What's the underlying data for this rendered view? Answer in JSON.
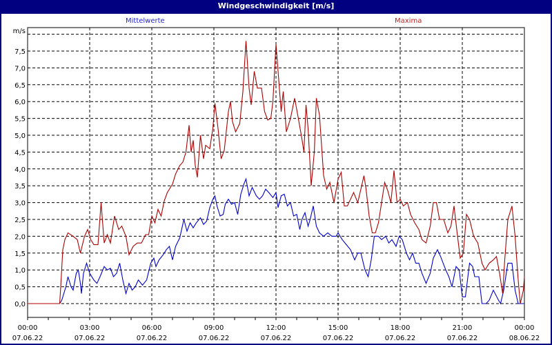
{
  "window": {
    "title": "Windgeschwindigkeit [m/s]"
  },
  "chart_data": {
    "type": "line",
    "title": "Windgeschwindigkeit [m/s]",
    "ylabel": "m/s",
    "xlabel": "",
    "ylim": [
      0,
      8.2
    ],
    "xlim_hours": [
      0,
      24
    ],
    "grid": true,
    "legend_position": "top",
    "y_ticks": [
      "0,0",
      "0,5",
      "1,0",
      "1,5",
      "2,0",
      "2,5",
      "3,0",
      "3,5",
      "4,0",
      "4,5",
      "5,0",
      "5,5",
      "6,0",
      "6,5",
      "7,0",
      "7,5"
    ],
    "x_ticks": [
      {
        "time": "00:00",
        "date": "07.06.22"
      },
      {
        "time": "03:00",
        "date": "07.06.22"
      },
      {
        "time": "06:00",
        "date": "07.06.22"
      },
      {
        "time": "09:00",
        "date": "07.06.22"
      },
      {
        "time": "12:00",
        "date": "07.06.22"
      },
      {
        "time": "15:00",
        "date": "07.06.22"
      },
      {
        "time": "18:00",
        "date": "07.06.22"
      },
      {
        "time": "21:00",
        "date": "07.06.22"
      },
      {
        "time": "00:00",
        "date": "08.06.22"
      }
    ],
    "series": [
      {
        "name": "Mittelwerte",
        "color": "#0000cc",
        "points_hour_value": [
          [
            0,
            0
          ],
          [
            1.55,
            0
          ],
          [
            1.65,
            0.1
          ],
          [
            1.85,
            0.5
          ],
          [
            1.95,
            0.8
          ],
          [
            2.1,
            0.5
          ],
          [
            2.2,
            0.4
          ],
          [
            2.35,
            0.9
          ],
          [
            2.45,
            1.0
          ],
          [
            2.55,
            0.6
          ],
          [
            2.6,
            0.3
          ],
          [
            2.7,
            0.9
          ],
          [
            2.85,
            1.2
          ],
          [
            3.0,
            0.9
          ],
          [
            3.2,
            0.7
          ],
          [
            3.35,
            0.6
          ],
          [
            3.5,
            0.8
          ],
          [
            3.7,
            1.1
          ],
          [
            3.85,
            1.0
          ],
          [
            4.0,
            1.05
          ],
          [
            4.15,
            0.8
          ],
          [
            4.3,
            0.9
          ],
          [
            4.45,
            1.2
          ],
          [
            4.6,
            0.7
          ],
          [
            4.75,
            0.3
          ],
          [
            4.9,
            0.6
          ],
          [
            5.05,
            0.4
          ],
          [
            5.2,
            0.5
          ],
          [
            5.35,
            0.7
          ],
          [
            5.55,
            0.55
          ],
          [
            5.75,
            0.7
          ],
          [
            5.95,
            1.2
          ],
          [
            6.1,
            1.35
          ],
          [
            6.2,
            1.1
          ],
          [
            6.35,
            1.3
          ],
          [
            6.55,
            1.45
          ],
          [
            6.7,
            1.6
          ],
          [
            6.85,
            1.7
          ],
          [
            7.0,
            1.3
          ],
          [
            7.15,
            1.7
          ],
          [
            7.35,
            1.95
          ],
          [
            7.55,
            2.5
          ],
          [
            7.7,
            2.15
          ],
          [
            7.85,
            2.4
          ],
          [
            8.0,
            2.25
          ],
          [
            8.15,
            2.4
          ],
          [
            8.35,
            2.55
          ],
          [
            8.5,
            2.35
          ],
          [
            8.65,
            2.45
          ],
          [
            8.8,
            2.85
          ],
          [
            8.95,
            3.1
          ],
          [
            9.05,
            3.2
          ],
          [
            9.15,
            2.9
          ],
          [
            9.3,
            2.6
          ],
          [
            9.45,
            2.65
          ],
          [
            9.55,
            2.95
          ],
          [
            9.7,
            3.1
          ],
          [
            9.85,
            2.95
          ],
          [
            10.0,
            3.0
          ],
          [
            10.15,
            2.65
          ],
          [
            10.3,
            3.25
          ],
          [
            10.45,
            3.55
          ],
          [
            10.55,
            3.7
          ],
          [
            10.7,
            3.2
          ],
          [
            10.85,
            3.45
          ],
          [
            11.05,
            3.2
          ],
          [
            11.2,
            3.1
          ],
          [
            11.35,
            3.2
          ],
          [
            11.5,
            3.4
          ],
          [
            11.65,
            3.3
          ],
          [
            11.85,
            3.15
          ],
          [
            12.0,
            3.3
          ],
          [
            12.1,
            2.85
          ],
          [
            12.25,
            3.2
          ],
          [
            12.4,
            3.25
          ],
          [
            12.55,
            2.9
          ],
          [
            12.7,
            3.0
          ],
          [
            12.85,
            2.6
          ],
          [
            13.0,
            2.65
          ],
          [
            13.15,
            2.2
          ],
          [
            13.25,
            2.5
          ],
          [
            13.4,
            2.7
          ],
          [
            13.55,
            2.3
          ],
          [
            13.65,
            2.5
          ],
          [
            13.8,
            2.9
          ],
          [
            13.95,
            2.3
          ],
          [
            14.1,
            2.1
          ],
          [
            14.3,
            2.0
          ],
          [
            14.5,
            2.1
          ],
          [
            14.7,
            2.0
          ],
          [
            14.9,
            2.0
          ],
          [
            15.0,
            2.1
          ],
          [
            15.2,
            1.9
          ],
          [
            15.4,
            1.75
          ],
          [
            15.6,
            1.6
          ],
          [
            15.8,
            1.3
          ],
          [
            15.95,
            1.5
          ],
          [
            16.1,
            1.5
          ],
          [
            16.3,
            1.0
          ],
          [
            16.45,
            0.8
          ],
          [
            16.6,
            1.3
          ],
          [
            16.75,
            2.0
          ],
          [
            16.95,
            2.0
          ],
          [
            17.1,
            1.9
          ],
          [
            17.3,
            2.0
          ],
          [
            17.45,
            1.8
          ],
          [
            17.6,
            1.9
          ],
          [
            17.8,
            1.7
          ],
          [
            17.95,
            2.0
          ],
          [
            18.1,
            1.9
          ],
          [
            18.3,
            1.5
          ],
          [
            18.45,
            1.3
          ],
          [
            18.6,
            1.5
          ],
          [
            18.75,
            1.2
          ],
          [
            18.9,
            1.2
          ],
          [
            19.05,
            0.9
          ],
          [
            19.25,
            0.6
          ],
          [
            19.45,
            0.9
          ],
          [
            19.6,
            1.35
          ],
          [
            19.8,
            1.6
          ],
          [
            19.95,
            1.4
          ],
          [
            20.2,
            1.0
          ],
          [
            20.35,
            0.8
          ],
          [
            20.5,
            0.5
          ],
          [
            20.7,
            1.1
          ],
          [
            20.85,
            1.0
          ],
          [
            21.0,
            0.2
          ],
          [
            21.15,
            0.2
          ],
          [
            21.35,
            1.2
          ],
          [
            21.5,
            1.1
          ],
          [
            21.6,
            0.8
          ],
          [
            21.8,
            0.8
          ],
          [
            21.95,
            0.0
          ],
          [
            22.15,
            0.0
          ],
          [
            22.3,
            0.1
          ],
          [
            22.5,
            0.4
          ],
          [
            22.75,
            0.1
          ],
          [
            22.85,
            0.0
          ],
          [
            23.0,
            0.4
          ],
          [
            23.2,
            1.2
          ],
          [
            23.4,
            1.2
          ],
          [
            23.55,
            0.4
          ],
          [
            23.7,
            0.0
          ],
          [
            24.0,
            0.0
          ]
        ]
      },
      {
        "name": "Maxima",
        "color": "#aa0000",
        "points_hour_value": [
          [
            0,
            0
          ],
          [
            1.55,
            0
          ],
          [
            1.6,
            0.5
          ],
          [
            1.7,
            1.6
          ],
          [
            1.8,
            1.9
          ],
          [
            1.95,
            2.1
          ],
          [
            2.2,
            2.0
          ],
          [
            2.4,
            1.9
          ],
          [
            2.55,
            1.5
          ],
          [
            2.75,
            2.0
          ],
          [
            2.9,
            2.2
          ],
          [
            3.05,
            1.9
          ],
          [
            3.2,
            1.75
          ],
          [
            3.4,
            1.75
          ],
          [
            3.55,
            3.0
          ],
          [
            3.7,
            1.8
          ],
          [
            3.85,
            2.05
          ],
          [
            4.0,
            1.8
          ],
          [
            4.2,
            2.6
          ],
          [
            4.4,
            2.2
          ],
          [
            4.55,
            2.3
          ],
          [
            4.75,
            2.0
          ],
          [
            4.9,
            1.45
          ],
          [
            5.1,
            1.7
          ],
          [
            5.3,
            1.8
          ],
          [
            5.5,
            1.8
          ],
          [
            5.7,
            2.05
          ],
          [
            5.85,
            2.05
          ],
          [
            6.0,
            2.6
          ],
          [
            6.15,
            2.4
          ],
          [
            6.3,
            2.8
          ],
          [
            6.45,
            2.6
          ],
          [
            6.6,
            3.05
          ],
          [
            6.75,
            3.3
          ],
          [
            6.9,
            3.45
          ],
          [
            7.0,
            3.55
          ],
          [
            7.15,
            3.85
          ],
          [
            7.35,
            4.1
          ],
          [
            7.5,
            4.2
          ],
          [
            7.65,
            4.5
          ],
          [
            7.8,
            5.3
          ],
          [
            7.9,
            4.5
          ],
          [
            8.0,
            4.85
          ],
          [
            8.1,
            4.1
          ],
          [
            8.2,
            3.75
          ],
          [
            8.35,
            5.0
          ],
          [
            8.5,
            4.3
          ],
          [
            8.6,
            4.7
          ],
          [
            8.8,
            4.6
          ],
          [
            8.95,
            5.2
          ],
          [
            9.05,
            5.95
          ],
          [
            9.2,
            5.2
          ],
          [
            9.35,
            4.3
          ],
          [
            9.5,
            4.55
          ],
          [
            9.7,
            5.7
          ],
          [
            9.8,
            6.0
          ],
          [
            9.9,
            5.4
          ],
          [
            10.05,
            5.1
          ],
          [
            10.25,
            5.35
          ],
          [
            10.4,
            6.3
          ],
          [
            10.55,
            7.8
          ],
          [
            10.7,
            6.4
          ],
          [
            10.8,
            5.9
          ],
          [
            10.95,
            6.9
          ],
          [
            11.1,
            6.4
          ],
          [
            11.3,
            6.4
          ],
          [
            11.45,
            5.7
          ],
          [
            11.6,
            5.45
          ],
          [
            11.75,
            5.5
          ],
          [
            11.85,
            6.0
          ],
          [
            12.0,
            7.7
          ],
          [
            12.1,
            6.9
          ],
          [
            12.25,
            5.7
          ],
          [
            12.35,
            6.3
          ],
          [
            12.5,
            5.1
          ],
          [
            12.7,
            5.5
          ],
          [
            12.9,
            6.1
          ],
          [
            13.05,
            5.6
          ],
          [
            13.25,
            4.9
          ],
          [
            13.35,
            4.5
          ],
          [
            13.45,
            5.9
          ],
          [
            13.55,
            5.2
          ],
          [
            13.7,
            3.5
          ],
          [
            13.85,
            4.5
          ],
          [
            13.95,
            6.1
          ],
          [
            14.1,
            5.6
          ],
          [
            14.3,
            3.8
          ],
          [
            14.45,
            3.4
          ],
          [
            14.6,
            3.6
          ],
          [
            14.8,
            3.0
          ],
          [
            15.0,
            3.7
          ],
          [
            15.15,
            3.9
          ],
          [
            15.3,
            2.9
          ],
          [
            15.45,
            2.9
          ],
          [
            15.6,
            3.1
          ],
          [
            15.75,
            3.3
          ],
          [
            15.95,
            3.0
          ],
          [
            16.1,
            3.4
          ],
          [
            16.25,
            3.8
          ],
          [
            16.35,
            3.4
          ],
          [
            16.5,
            2.6
          ],
          [
            16.65,
            2.1
          ],
          [
            16.8,
            2.1
          ],
          [
            16.95,
            2.4
          ],
          [
            17.1,
            3.0
          ],
          [
            17.25,
            3.6
          ],
          [
            17.4,
            3.35
          ],
          [
            17.55,
            3.0
          ],
          [
            17.7,
            3.95
          ],
          [
            17.85,
            3.0
          ],
          [
            18.0,
            3.1
          ],
          [
            18.15,
            2.9
          ],
          [
            18.35,
            3.0
          ],
          [
            18.5,
            2.65
          ],
          [
            18.7,
            2.4
          ],
          [
            18.9,
            2.2
          ],
          [
            19.05,
            1.9
          ],
          [
            19.25,
            1.8
          ],
          [
            19.45,
            2.3
          ],
          [
            19.6,
            3.0
          ],
          [
            19.75,
            3.0
          ],
          [
            19.9,
            2.5
          ],
          [
            20.1,
            2.5
          ],
          [
            20.3,
            2.1
          ],
          [
            20.45,
            2.3
          ],
          [
            20.6,
            2.9
          ],
          [
            20.75,
            2.1
          ],
          [
            20.9,
            1.35
          ],
          [
            21.05,
            1.5
          ],
          [
            21.2,
            2.65
          ],
          [
            21.35,
            2.5
          ],
          [
            21.55,
            2.0
          ],
          [
            21.75,
            1.8
          ],
          [
            21.95,
            1.2
          ],
          [
            22.1,
            1.0
          ],
          [
            22.3,
            1.2
          ],
          [
            22.5,
            1.3
          ],
          [
            22.65,
            1.4
          ],
          [
            22.8,
            0.9
          ],
          [
            22.95,
            0.3
          ],
          [
            23.05,
            1.3
          ],
          [
            23.2,
            2.5
          ],
          [
            23.4,
            2.9
          ],
          [
            23.55,
            2.0
          ],
          [
            23.7,
            0.7
          ],
          [
            23.8,
            0.0
          ],
          [
            23.95,
            0.4
          ],
          [
            24.0,
            0.8
          ]
        ]
      }
    ]
  },
  "legend": {
    "mean_label": "Mittelwerte",
    "max_label": "Maxima"
  },
  "axis": {
    "unit_label": "m/s"
  }
}
